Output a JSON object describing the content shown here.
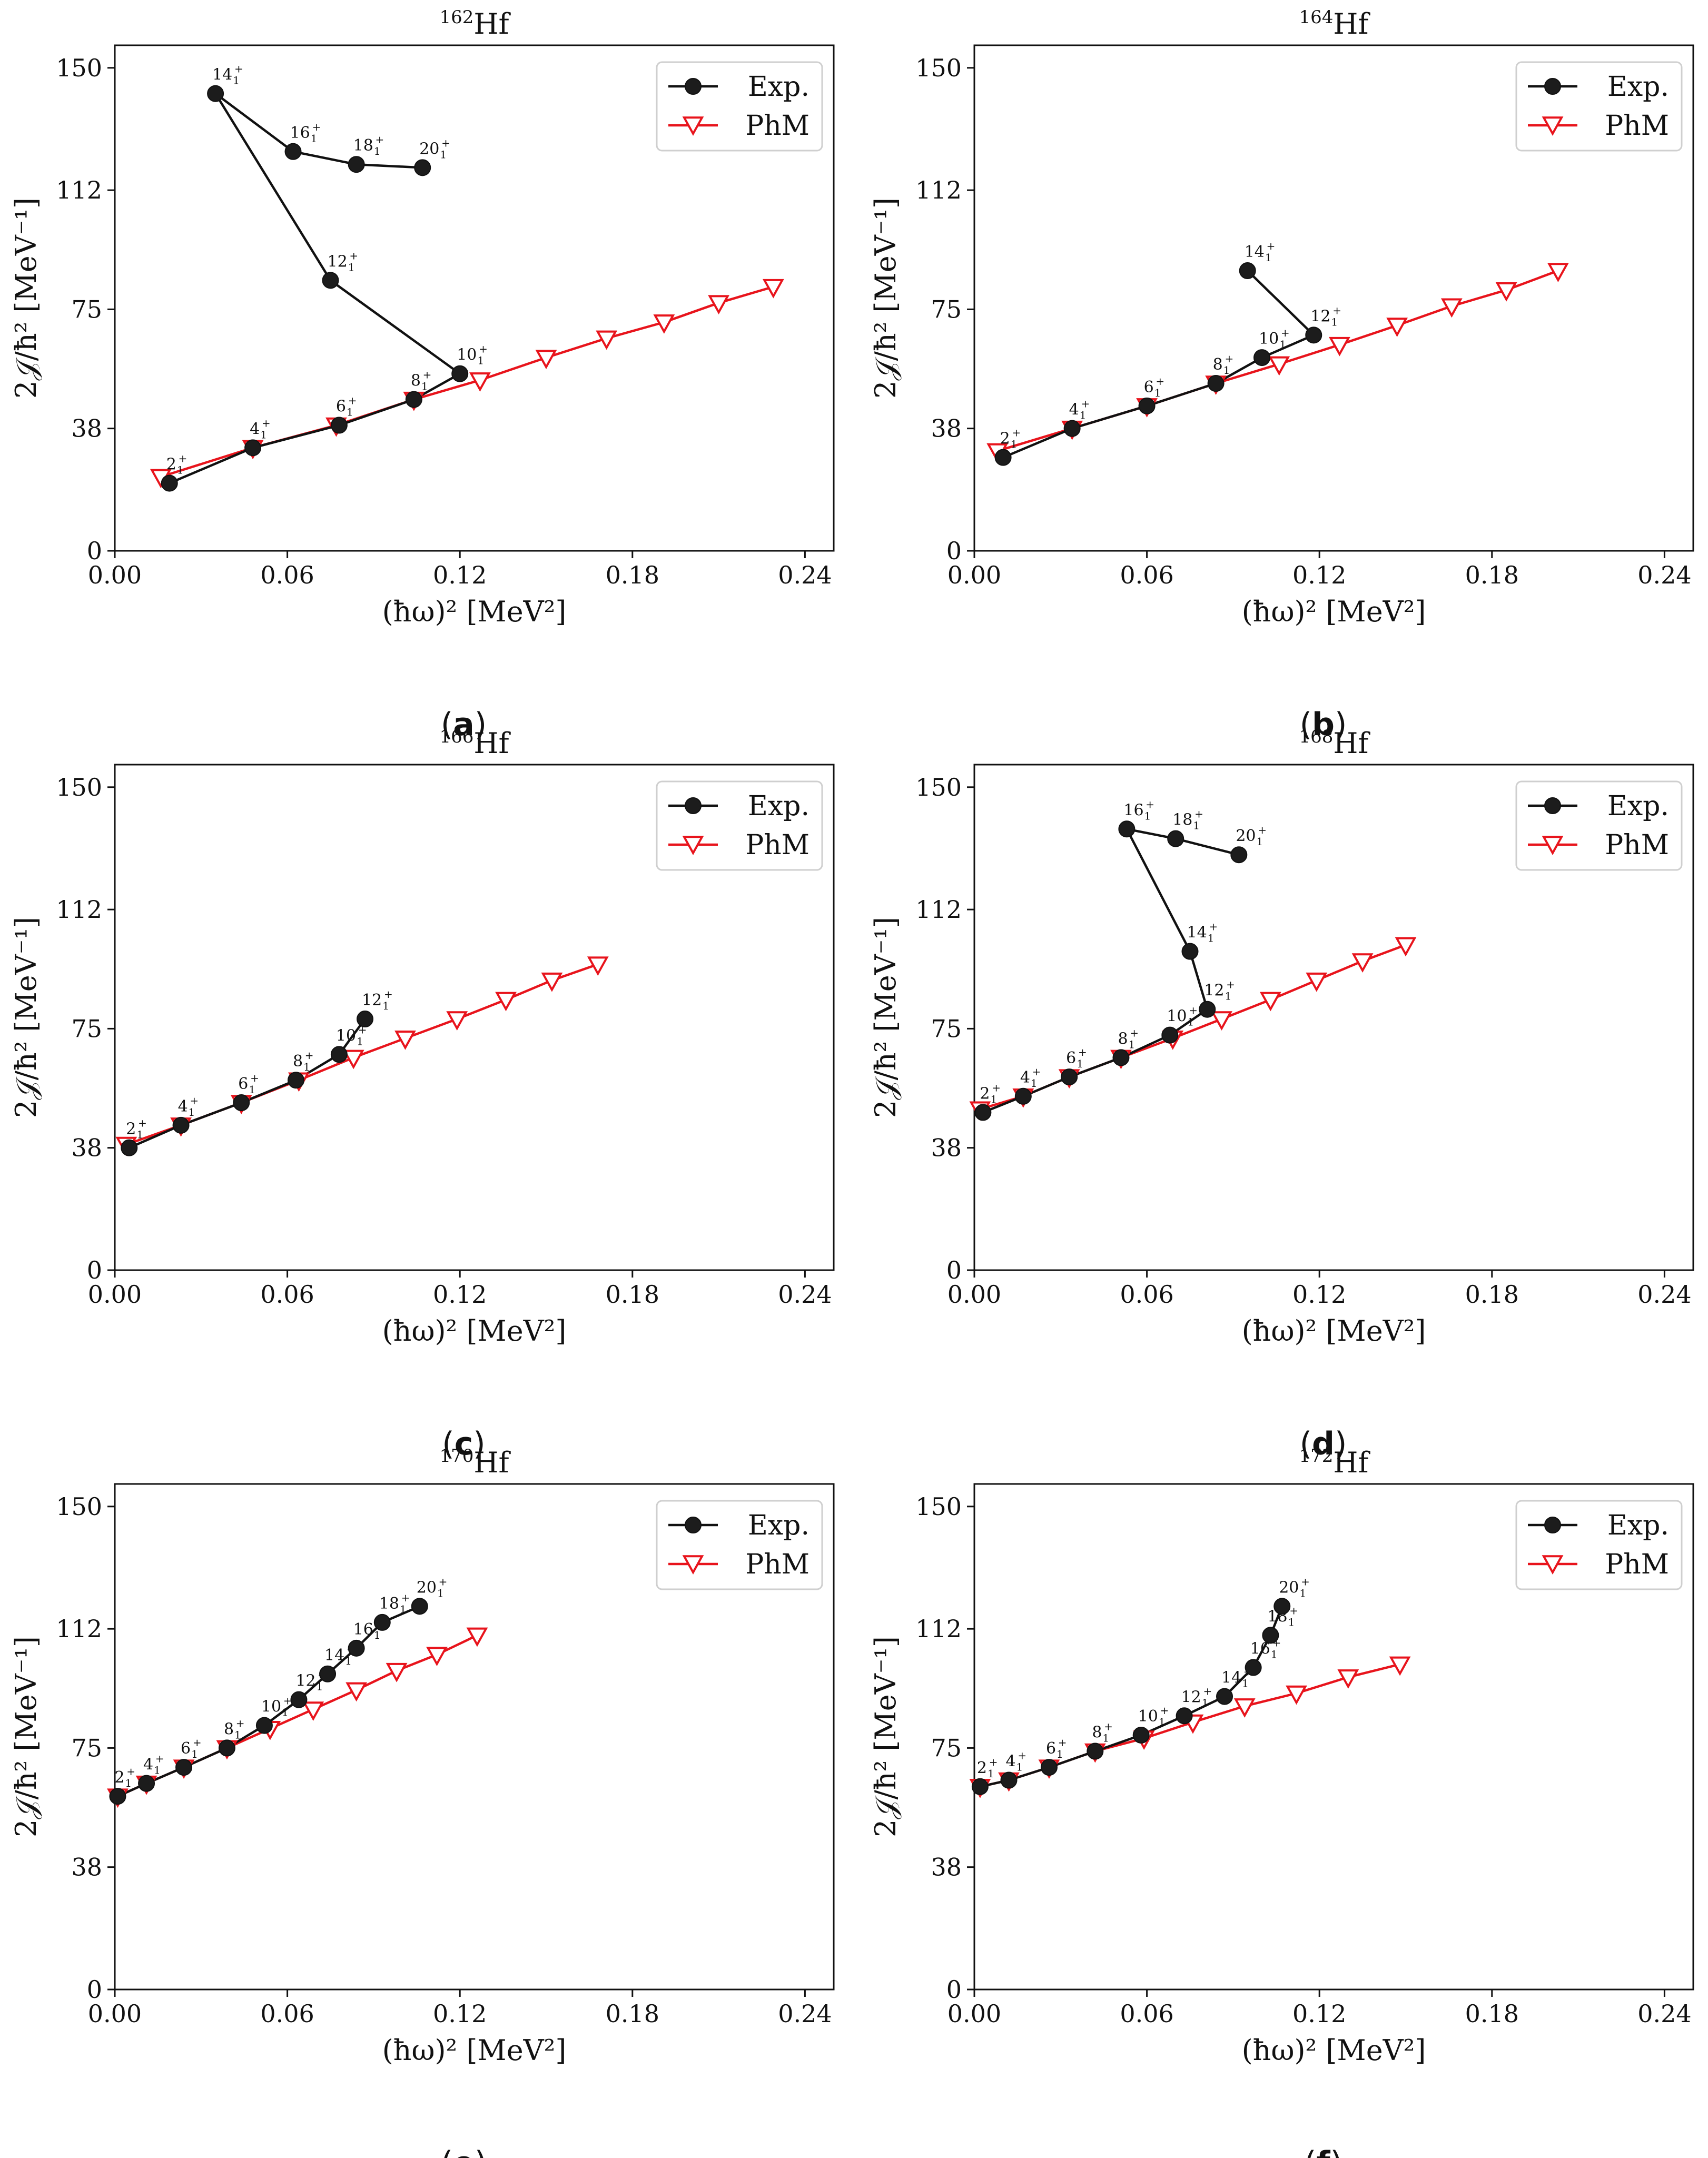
{
  "chart_data": [
    {
      "id": "a",
      "type": "line",
      "title": "162Hf",
      "title_mass": "162",
      "title_elem": "Hf",
      "caption_letter": "a",
      "xlabel": "(ħω)² [MeV²]",
      "ylabel": "2𝒥/ħ² [MeV⁻¹]",
      "xlim": [
        0.0,
        0.25
      ],
      "ylim": [
        0,
        157
      ],
      "xticks": [
        0.0,
        0.06,
        0.12,
        0.18,
        0.24
      ],
      "xtick_labels": [
        "0.00",
        "0.06",
        "0.12",
        "0.18",
        "0.24"
      ],
      "yticks": [
        0,
        38,
        75,
        112,
        150
      ],
      "ytick_labels": [
        "0",
        "38",
        "75",
        "112",
        "150"
      ],
      "legend": [
        "Exp.",
        "PhM"
      ],
      "legend_position": "top-right",
      "series": [
        {
          "name": "Exp.",
          "color": "#111111",
          "marker": "circle",
          "points": [
            {
              "x": 0.019,
              "y": 21,
              "label": "2"
            },
            {
              "x": 0.048,
              "y": 32,
              "label": "4"
            },
            {
              "x": 0.078,
              "y": 39,
              "label": "6"
            },
            {
              "x": 0.104,
              "y": 47,
              "label": "8"
            },
            {
              "x": 0.12,
              "y": 55,
              "label": "10"
            },
            {
              "x": 0.075,
              "y": 84,
              "label": "12"
            },
            {
              "x": 0.035,
              "y": 142,
              "label": "14"
            },
            {
              "x": 0.062,
              "y": 124,
              "label": "16"
            },
            {
              "x": 0.084,
              "y": 120,
              "label": "18"
            },
            {
              "x": 0.107,
              "y": 119,
              "label": "20"
            }
          ]
        },
        {
          "name": "PhM",
          "color": "#e8141c",
          "marker": "triangle-down",
          "points": [
            {
              "x": 0.016,
              "y": 23
            },
            {
              "x": 0.048,
              "y": 32
            },
            {
              "x": 0.077,
              "y": 39
            },
            {
              "x": 0.104,
              "y": 47
            },
            {
              "x": 0.127,
              "y": 53
            },
            {
              "x": 0.15,
              "y": 60
            },
            {
              "x": 0.171,
              "y": 66
            },
            {
              "x": 0.191,
              "y": 71
            },
            {
              "x": 0.21,
              "y": 77
            },
            {
              "x": 0.229,
              "y": 82
            }
          ]
        }
      ]
    },
    {
      "id": "b",
      "type": "line",
      "title": "164Hf",
      "title_mass": "164",
      "title_elem": "Hf",
      "caption_letter": "b",
      "xlabel": "(ħω)² [MeV²]",
      "ylabel": "2𝒥/ħ² [MeV⁻¹]",
      "xlim": [
        0.0,
        0.25
      ],
      "ylim": [
        0,
        157
      ],
      "xticks": [
        0.0,
        0.06,
        0.12,
        0.18,
        0.24
      ],
      "xtick_labels": [
        "0.00",
        "0.06",
        "0.12",
        "0.18",
        "0.24"
      ],
      "yticks": [
        0,
        38,
        75,
        112,
        150
      ],
      "ytick_labels": [
        "0",
        "38",
        "75",
        "112",
        "150"
      ],
      "legend": [
        "Exp.",
        "PhM"
      ],
      "legend_position": "top-right",
      "series": [
        {
          "name": "Exp.",
          "color": "#111111",
          "marker": "circle",
          "points": [
            {
              "x": 0.01,
              "y": 29,
              "label": "2"
            },
            {
              "x": 0.034,
              "y": 38,
              "label": "4"
            },
            {
              "x": 0.06,
              "y": 45,
              "label": "6"
            },
            {
              "x": 0.084,
              "y": 52,
              "label": "8"
            },
            {
              "x": 0.1,
              "y": 60,
              "label": "10"
            },
            {
              "x": 0.118,
              "y": 67,
              "label": "12"
            },
            {
              "x": 0.095,
              "y": 87,
              "label": "14"
            }
          ]
        },
        {
          "name": "PhM",
          "color": "#e8141c",
          "marker": "triangle-down",
          "points": [
            {
              "x": 0.008,
              "y": 31
            },
            {
              "x": 0.034,
              "y": 38
            },
            {
              "x": 0.06,
              "y": 45
            },
            {
              "x": 0.084,
              "y": 52
            },
            {
              "x": 0.106,
              "y": 58
            },
            {
              "x": 0.127,
              "y": 64
            },
            {
              "x": 0.147,
              "y": 70
            },
            {
              "x": 0.166,
              "y": 76
            },
            {
              "x": 0.185,
              "y": 81
            },
            {
              "x": 0.203,
              "y": 87
            }
          ]
        }
      ]
    },
    {
      "id": "c",
      "type": "line",
      "title": "166Hf",
      "title_mass": "166",
      "title_elem": "Hf",
      "caption_letter": "c",
      "xlabel": "(ħω)² [MeV²]",
      "ylabel": "2𝒥/ħ² [MeV⁻¹]",
      "xlim": [
        0.0,
        0.25
      ],
      "ylim": [
        0,
        157
      ],
      "xticks": [
        0.0,
        0.06,
        0.12,
        0.18,
        0.24
      ],
      "xtick_labels": [
        "0.00",
        "0.06",
        "0.12",
        "0.18",
        "0.24"
      ],
      "yticks": [
        0,
        38,
        75,
        112,
        150
      ],
      "ytick_labels": [
        "0",
        "38",
        "75",
        "112",
        "150"
      ],
      "legend": [
        "Exp.",
        "PhM"
      ],
      "legend_position": "top-right",
      "series": [
        {
          "name": "Exp.",
          "color": "#111111",
          "marker": "circle",
          "points": [
            {
              "x": 0.005,
              "y": 38,
              "label": "2"
            },
            {
              "x": 0.023,
              "y": 45,
              "label": "4"
            },
            {
              "x": 0.044,
              "y": 52,
              "label": "6"
            },
            {
              "x": 0.063,
              "y": 59,
              "label": "8"
            },
            {
              "x": 0.078,
              "y": 67,
              "label": "10"
            },
            {
              "x": 0.087,
              "y": 78,
              "label": "12"
            }
          ]
        },
        {
          "name": "PhM",
          "color": "#e8141c",
          "marker": "triangle-down",
          "points": [
            {
              "x": 0.004,
              "y": 39
            },
            {
              "x": 0.023,
              "y": 45
            },
            {
              "x": 0.044,
              "y": 52
            },
            {
              "x": 0.064,
              "y": 59
            },
            {
              "x": 0.083,
              "y": 66
            },
            {
              "x": 0.101,
              "y": 72
            },
            {
              "x": 0.119,
              "y": 78
            },
            {
              "x": 0.136,
              "y": 84
            },
            {
              "x": 0.152,
              "y": 90
            },
            {
              "x": 0.168,
              "y": 95
            }
          ]
        }
      ]
    },
    {
      "id": "d",
      "type": "line",
      "title": "168Hf",
      "title_mass": "168",
      "title_elem": "Hf",
      "caption_letter": "d",
      "xlabel": "(ħω)² [MeV²]",
      "ylabel": "2𝒥/ħ² [MeV⁻¹]",
      "xlim": [
        0.0,
        0.25
      ],
      "ylim": [
        0,
        157
      ],
      "xticks": [
        0.0,
        0.06,
        0.12,
        0.18,
        0.24
      ],
      "xtick_labels": [
        "0.00",
        "0.06",
        "0.12",
        "0.18",
        "0.24"
      ],
      "yticks": [
        0,
        38,
        75,
        112,
        150
      ],
      "ytick_labels": [
        "0",
        "38",
        "75",
        "112",
        "150"
      ],
      "legend": [
        "Exp.",
        "PhM"
      ],
      "legend_position": "top-right",
      "series": [
        {
          "name": "Exp.",
          "color": "#111111",
          "marker": "circle",
          "points": [
            {
              "x": 0.003,
              "y": 49,
              "label": "2"
            },
            {
              "x": 0.017,
              "y": 54,
              "label": "4"
            },
            {
              "x": 0.033,
              "y": 60,
              "label": "6"
            },
            {
              "x": 0.051,
              "y": 66,
              "label": "8"
            },
            {
              "x": 0.068,
              "y": 73,
              "label": "10"
            },
            {
              "x": 0.081,
              "y": 81,
              "label": "12"
            },
            {
              "x": 0.075,
              "y": 99,
              "label": "14"
            },
            {
              "x": 0.053,
              "y": 137,
              "label": "16"
            },
            {
              "x": 0.07,
              "y": 134,
              "label": "18"
            },
            {
              "x": 0.092,
              "y": 129,
              "label": "20"
            }
          ]
        },
        {
          "name": "PhM",
          "color": "#e8141c",
          "marker": "triangle-down",
          "points": [
            {
              "x": 0.002,
              "y": 50
            },
            {
              "x": 0.017,
              "y": 54
            },
            {
              "x": 0.033,
              "y": 60
            },
            {
              "x": 0.051,
              "y": 66
            },
            {
              "x": 0.069,
              "y": 72
            },
            {
              "x": 0.086,
              "y": 78
            },
            {
              "x": 0.103,
              "y": 84
            },
            {
              "x": 0.119,
              "y": 90
            },
            {
              "x": 0.135,
              "y": 96
            },
            {
              "x": 0.15,
              "y": 101
            }
          ]
        }
      ]
    },
    {
      "id": "e",
      "type": "line",
      "title": "170Hf",
      "title_mass": "170",
      "title_elem": "Hf",
      "caption_letter": "e",
      "xlabel": "(ħω)² [MeV²]",
      "ylabel": "2𝒥/ħ² [MeV⁻¹]",
      "xlim": [
        0.0,
        0.25
      ],
      "ylim": [
        0,
        157
      ],
      "xticks": [
        0.0,
        0.06,
        0.12,
        0.18,
        0.24
      ],
      "xtick_labels": [
        "0.00",
        "0.06",
        "0.12",
        "0.18",
        "0.24"
      ],
      "yticks": [
        0,
        38,
        75,
        112,
        150
      ],
      "ytick_labels": [
        "0",
        "38",
        "75",
        "112",
        "150"
      ],
      "legend": [
        "Exp.",
        "PhM"
      ],
      "legend_position": "top-right",
      "series": [
        {
          "name": "Exp.",
          "color": "#111111",
          "marker": "circle",
          "points": [
            {
              "x": 0.001,
              "y": 60,
              "label": "2"
            },
            {
              "x": 0.011,
              "y": 64,
              "label": "4"
            },
            {
              "x": 0.024,
              "y": 69,
              "label": "6"
            },
            {
              "x": 0.039,
              "y": 75,
              "label": "8"
            },
            {
              "x": 0.052,
              "y": 82,
              "label": "10"
            },
            {
              "x": 0.064,
              "y": 90,
              "label": "12"
            },
            {
              "x": 0.074,
              "y": 98,
              "label": "14"
            },
            {
              "x": 0.084,
              "y": 106,
              "label": "16"
            },
            {
              "x": 0.093,
              "y": 114,
              "label": "18"
            },
            {
              "x": 0.106,
              "y": 119,
              "label": "20"
            }
          ]
        },
        {
          "name": "PhM",
          "color": "#e8141c",
          "marker": "triangle-down",
          "points": [
            {
              "x": 0.001,
              "y": 60
            },
            {
              "x": 0.011,
              "y": 64
            },
            {
              "x": 0.024,
              "y": 69
            },
            {
              "x": 0.039,
              "y": 75
            },
            {
              "x": 0.054,
              "y": 81
            },
            {
              "x": 0.069,
              "y": 87
            },
            {
              "x": 0.084,
              "y": 93
            },
            {
              "x": 0.098,
              "y": 99
            },
            {
              "x": 0.112,
              "y": 104
            },
            {
              "x": 0.126,
              "y": 110
            }
          ]
        }
      ]
    },
    {
      "id": "f",
      "type": "line",
      "title": "172Hf",
      "title_mass": "172",
      "title_elem": "Hf",
      "caption_letter": "f",
      "xlabel": "(ħω)² [MeV²]",
      "ylabel": "2𝒥/ħ² [MeV⁻¹]",
      "xlim": [
        0.0,
        0.25
      ],
      "ylim": [
        0,
        157
      ],
      "xticks": [
        0.0,
        0.06,
        0.12,
        0.18,
        0.24
      ],
      "xtick_labels": [
        "0.00",
        "0.06",
        "0.12",
        "0.18",
        "0.24"
      ],
      "yticks": [
        0,
        38,
        75,
        112,
        150
      ],
      "ytick_labels": [
        "0",
        "38",
        "75",
        "112",
        "150"
      ],
      "legend": [
        "Exp.",
        "PhM"
      ],
      "legend_position": "top-right",
      "series": [
        {
          "name": "Exp.",
          "color": "#111111",
          "marker": "circle",
          "points": [
            {
              "x": 0.002,
              "y": 63,
              "label": "2"
            },
            {
              "x": 0.012,
              "y": 65,
              "label": "4"
            },
            {
              "x": 0.026,
              "y": 69,
              "label": "6"
            },
            {
              "x": 0.042,
              "y": 74,
              "label": "8"
            },
            {
              "x": 0.058,
              "y": 79,
              "label": "10"
            },
            {
              "x": 0.073,
              "y": 85,
              "label": "12"
            },
            {
              "x": 0.087,
              "y": 91,
              "label": "14"
            },
            {
              "x": 0.097,
              "y": 100,
              "label": "16"
            },
            {
              "x": 0.103,
              "y": 110,
              "label": "18"
            },
            {
              "x": 0.107,
              "y": 119,
              "label": "20"
            }
          ]
        },
        {
          "name": "PhM",
          "color": "#e8141c",
          "marker": "triangle-down",
          "points": [
            {
              "x": 0.002,
              "y": 63
            },
            {
              "x": 0.012,
              "y": 65
            },
            {
              "x": 0.026,
              "y": 69
            },
            {
              "x": 0.042,
              "y": 74
            },
            {
              "x": 0.059,
              "y": 78
            },
            {
              "x": 0.076,
              "y": 83
            },
            {
              "x": 0.094,
              "y": 88
            },
            {
              "x": 0.112,
              "y": 92
            },
            {
              "x": 0.13,
              "y": 97
            },
            {
              "x": 0.148,
              "y": 101
            }
          ]
        }
      ]
    }
  ]
}
